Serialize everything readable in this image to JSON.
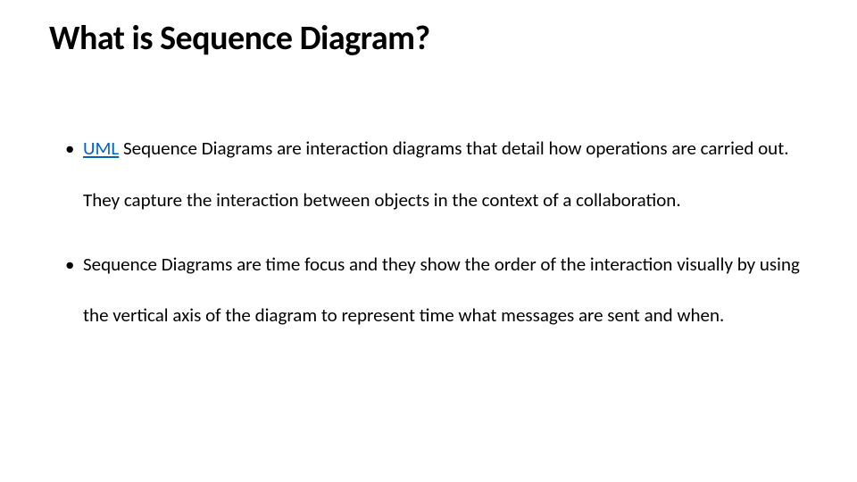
{
  "slide": {
    "title": "What is Sequence Diagram?",
    "bullets": [
      {
        "link_text": "UML",
        "rest_text": " Sequence Diagrams are interaction diagrams that detail how operations are carried out. They capture the interaction between objects in the context of a collaboration."
      },
      {
        "link_text": "",
        "rest_text": " Sequence Diagrams are time focus and they show the order of the interaction visually by using the vertical axis of the diagram to represent time what messages are sent and when."
      }
    ]
  },
  "style": {
    "background_color": "#ffffff",
    "text_color": "#000000",
    "link_color": "#0563c1",
    "title_fontsize": 38,
    "body_fontsize": 21,
    "title_weight": 700,
    "line_height": 2.75
  }
}
